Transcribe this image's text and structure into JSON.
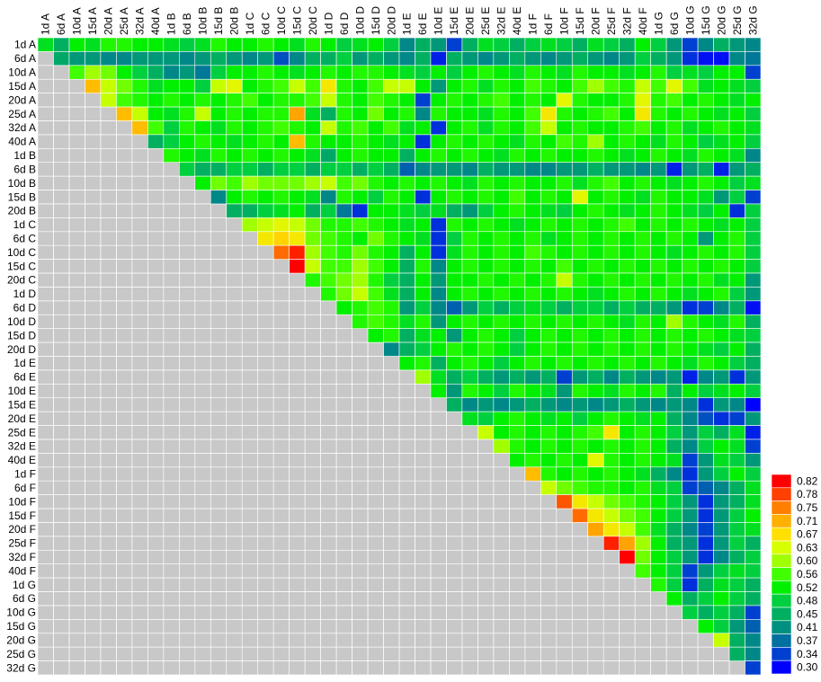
{
  "chart_data": {
    "type": "heatmap",
    "x": [
      "1d A",
      "6d A",
      "10d A",
      "15d A",
      "20d A",
      "25d A",
      "32d A",
      "40d A",
      "1d B",
      "6d B",
      "10d B",
      "15d B",
      "20d B",
      "1d C",
      "6d C",
      "10d C",
      "15d C",
      "20d C",
      "1d D",
      "6d D",
      "10d D",
      "15d D",
      "20d D",
      "1d E",
      "6d E",
      "10d E",
      "15d E",
      "20d E",
      "25d E",
      "32d E",
      "40d E",
      "1d F",
      "6d F",
      "10d F",
      "15d F",
      "20d F",
      "25d F",
      "32d F",
      "40d F",
      "1d G",
      "6d G",
      "10d G",
      "15d G",
      "20d G",
      "25d G",
      "32d G"
    ],
    "y": [
      "1d A",
      "6d A",
      "10d A",
      "15d A",
      "20d A",
      "25d A",
      "32d A",
      "40d A",
      "1d B",
      "6d B",
      "10d B",
      "15d B",
      "20d B",
      "1d C",
      "6d C",
      "10d C",
      "15d C",
      "20d C",
      "1d D",
      "6d D",
      "10d D",
      "15d D",
      "20d D",
      "1d E",
      "6d E",
      "10d E",
      "15d E",
      "20d E",
      "25d E",
      "32d E",
      "40d E",
      "1d F",
      "6d F",
      "10d F",
      "15d F",
      "20d F",
      "25d F",
      "32d F",
      "40d F",
      "1d G",
      "6d G",
      "10d G",
      "15d G",
      "20d G",
      "25d G",
      "32d G"
    ],
    "z": [
      [
        0.5,
        0.45,
        0.52,
        0.5,
        0.54,
        0.54,
        0.52,
        0.52,
        0.5,
        0.48,
        0.5,
        0.54,
        0.52,
        0.52,
        0.54,
        0.52,
        0.5,
        0.54,
        0.52,
        0.48,
        0.5,
        0.52,
        0.48,
        0.4,
        0.45,
        0.42,
        0.34,
        0.45,
        0.5,
        0.48,
        0.45,
        0.48,
        0.5,
        0.48,
        0.45,
        0.5,
        0.48,
        0.45,
        0.52,
        0.48,
        0.42,
        0.34,
        0.4,
        0.45,
        0.42,
        0.4
      ],
      [
        0.44,
        0.42,
        0.42,
        0.4,
        0.4,
        0.42,
        0.42,
        0.42,
        0.4,
        0.42,
        0.45,
        0.42,
        0.4,
        0.42,
        0.35,
        0.4,
        0.45,
        0.45,
        0.48,
        0.42,
        0.45,
        0.42,
        0.4,
        0.45,
        0.32,
        0.45,
        0.42,
        0.4,
        0.42,
        0.45,
        0.42,
        0.4,
        0.42,
        0.45,
        0.42,
        0.4,
        0.42,
        0.48,
        0.45,
        0.42,
        0.33,
        0.31,
        0.31,
        0.4,
        0.38
      ],
      [
        0.56,
        0.6,
        0.58,
        0.52,
        0.48,
        0.45,
        0.4,
        0.42,
        0.38,
        0.48,
        0.52,
        0.52,
        0.54,
        0.52,
        0.5,
        0.52,
        0.54,
        0.52,
        0.54,
        0.54,
        0.52,
        0.5,
        0.48,
        0.52,
        0.48,
        0.52,
        0.54,
        0.52,
        0.5,
        0.54,
        0.52,
        0.5,
        0.54,
        0.52,
        0.52,
        0.5,
        0.52,
        0.54,
        0.48,
        0.5,
        0.48,
        0.52,
        0.52,
        0.34
      ],
      [
        0.7,
        0.62,
        0.58,
        0.54,
        0.5,
        0.52,
        0.52,
        0.48,
        0.62,
        0.64,
        0.52,
        0.54,
        0.56,
        0.62,
        0.56,
        0.66,
        0.54,
        0.52,
        0.56,
        0.62,
        0.62,
        0.52,
        0.42,
        0.52,
        0.54,
        0.5,
        0.54,
        0.52,
        0.56,
        0.54,
        0.52,
        0.56,
        0.6,
        0.56,
        0.54,
        0.62,
        0.56,
        0.64,
        0.56,
        0.5,
        0.52,
        0.5,
        0.48
      ],
      [
        0.62,
        0.56,
        0.54,
        0.52,
        0.54,
        0.52,
        0.54,
        0.52,
        0.54,
        0.56,
        0.52,
        0.54,
        0.54,
        0.56,
        0.62,
        0.54,
        0.52,
        0.56,
        0.54,
        0.52,
        0.34,
        0.52,
        0.54,
        0.52,
        0.54,
        0.56,
        0.52,
        0.54,
        0.52,
        0.64,
        0.54,
        0.52,
        0.52,
        0.54,
        0.64,
        0.54,
        0.56,
        0.52,
        0.54,
        0.52,
        0.5,
        0.52
      ],
      [
        0.7,
        0.62,
        0.52,
        0.5,
        0.54,
        0.62,
        0.52,
        0.54,
        0.52,
        0.54,
        0.54,
        0.72,
        0.5,
        0.45,
        0.54,
        0.52,
        0.58,
        0.52,
        0.54,
        0.4,
        0.54,
        0.52,
        0.52,
        0.5,
        0.54,
        0.52,
        0.56,
        0.66,
        0.54,
        0.52,
        0.54,
        0.56,
        0.52,
        0.66,
        0.54,
        0.52,
        0.54,
        0.52,
        0.5,
        0.52,
        0.48
      ],
      [
        0.7,
        0.56,
        0.48,
        0.54,
        0.52,
        0.5,
        0.54,
        0.52,
        0.54,
        0.56,
        0.54,
        0.52,
        0.62,
        0.54,
        0.56,
        0.52,
        0.56,
        0.5,
        0.52,
        0.33,
        0.52,
        0.54,
        0.5,
        0.54,
        0.52,
        0.56,
        0.62,
        0.52,
        0.54,
        0.52,
        0.52,
        0.54,
        0.56,
        0.52,
        0.54,
        0.5,
        0.52,
        0.54,
        0.52,
        0.5
      ],
      [
        0.45,
        0.48,
        0.52,
        0.54,
        0.52,
        0.5,
        0.52,
        0.54,
        0.52,
        0.7,
        0.54,
        0.52,
        0.52,
        0.54,
        0.52,
        0.5,
        0.52,
        0.33,
        0.52,
        0.54,
        0.52,
        0.54,
        0.52,
        0.5,
        0.54,
        0.52,
        0.56,
        0.54,
        0.6,
        0.52,
        0.54,
        0.52,
        0.5,
        0.54,
        0.52,
        0.48,
        0.5,
        0.52,
        0.48
      ],
      [
        0.54,
        0.52,
        0.5,
        0.54,
        0.52,
        0.54,
        0.52,
        0.54,
        0.52,
        0.5,
        0.44,
        0.52,
        0.54,
        0.52,
        0.52,
        0.45,
        0.52,
        0.54,
        0.52,
        0.54,
        0.52,
        0.5,
        0.54,
        0.52,
        0.54,
        0.52,
        0.52,
        0.54,
        0.52,
        0.5,
        0.52,
        0.54,
        0.52,
        0.5,
        0.54,
        0.52,
        0.5,
        0.4
      ],
      [
        0.48,
        0.45,
        0.45,
        0.48,
        0.48,
        0.45,
        0.48,
        0.48,
        0.45,
        0.48,
        0.48,
        0.45,
        0.48,
        0.45,
        0.36,
        0.4,
        0.42,
        0.42,
        0.4,
        0.45,
        0.42,
        0.42,
        0.4,
        0.4,
        0.42,
        0.42,
        0.45,
        0.42,
        0.42,
        0.4,
        0.42,
        0.32,
        0.42,
        0.45,
        0.32,
        0.42,
        0.45
      ],
      [
        0.52,
        0.58,
        0.56,
        0.6,
        0.58,
        0.58,
        0.58,
        0.6,
        0.62,
        0.56,
        0.58,
        0.54,
        0.52,
        0.54,
        0.52,
        0.54,
        0.52,
        0.5,
        0.54,
        0.52,
        0.54,
        0.52,
        0.52,
        0.54,
        0.5,
        0.54,
        0.56,
        0.52,
        0.54,
        0.52,
        0.5,
        0.52,
        0.54,
        0.52,
        0.48,
        0.5
      ],
      [
        0.4,
        0.52,
        0.54,
        0.52,
        0.54,
        0.52,
        0.5,
        0.4,
        0.54,
        0.52,
        0.48,
        0.54,
        0.52,
        0.33,
        0.52,
        0.54,
        0.52,
        0.54,
        0.52,
        0.56,
        0.52,
        0.54,
        0.52,
        0.64,
        0.52,
        0.54,
        0.52,
        0.5,
        0.54,
        0.52,
        0.52,
        0.5,
        0.42,
        0.48,
        0.34
      ],
      [
        0.45,
        0.45,
        0.48,
        0.5,
        0.52,
        0.45,
        0.48,
        0.38,
        0.33,
        0.52,
        0.52,
        0.5,
        0.48,
        0.5,
        0.45,
        0.42,
        0.48,
        0.52,
        0.54,
        0.52,
        0.5,
        0.48,
        0.52,
        0.54,
        0.52,
        0.5,
        0.52,
        0.54,
        0.52,
        0.5,
        0.48,
        0.52,
        0.33,
        0.48
      ],
      [
        0.6,
        0.62,
        0.64,
        0.62,
        0.58,
        0.54,
        0.54,
        0.56,
        0.54,
        0.52,
        0.5,
        0.52,
        0.33,
        0.54,
        0.52,
        0.54,
        0.52,
        0.5,
        0.52,
        0.54,
        0.52,
        0.54,
        0.52,
        0.54,
        0.56,
        0.52,
        0.54,
        0.52,
        0.54,
        0.52,
        0.5,
        0.52,
        0.48
      ],
      [
        0.66,
        0.68,
        0.66,
        0.58,
        0.56,
        0.54,
        0.52,
        0.58,
        0.54,
        0.52,
        0.5,
        0.33,
        0.48,
        0.54,
        0.52,
        0.54,
        0.52,
        0.54,
        0.5,
        0.52,
        0.54,
        0.52,
        0.54,
        0.52,
        0.54,
        0.52,
        0.54,
        0.52,
        0.42,
        0.52,
        0.54,
        0.48
      ],
      [
        0.76,
        0.8,
        0.6,
        0.56,
        0.54,
        0.58,
        0.54,
        0.52,
        0.45,
        0.52,
        0.33,
        0.5,
        0.54,
        0.52,
        0.54,
        0.52,
        0.56,
        0.54,
        0.52,
        0.54,
        0.52,
        0.54,
        0.52,
        0.54,
        0.52,
        0.5,
        0.52,
        0.54,
        0.52,
        0.54,
        0.48
      ],
      [
        0.82,
        0.62,
        0.56,
        0.56,
        0.6,
        0.56,
        0.52,
        0.45,
        0.54,
        0.4,
        0.52,
        0.54,
        0.52,
        0.54,
        0.52,
        0.54,
        0.52,
        0.56,
        0.52,
        0.54,
        0.52,
        0.54,
        0.52,
        0.54,
        0.52,
        0.54,
        0.52,
        0.54,
        0.52,
        0.48
      ],
      [
        0.54,
        0.56,
        0.58,
        0.6,
        0.54,
        0.48,
        0.45,
        0.52,
        0.42,
        0.52,
        0.52,
        0.54,
        0.52,
        0.54,
        0.52,
        0.54,
        0.62,
        0.54,
        0.52,
        0.54,
        0.52,
        0.54,
        0.52,
        0.54,
        0.52,
        0.54,
        0.5,
        0.52,
        0.42
      ],
      [
        0.54,
        0.58,
        0.62,
        0.56,
        0.5,
        0.45,
        0.52,
        0.4,
        0.52,
        0.54,
        0.52,
        0.54,
        0.52,
        0.54,
        0.52,
        0.54,
        0.52,
        0.5,
        0.52,
        0.54,
        0.52,
        0.54,
        0.52,
        0.5,
        0.52,
        0.54,
        0.48,
        0.42
      ],
      [
        0.52,
        0.54,
        0.56,
        0.54,
        0.42,
        0.48,
        0.4,
        0.36,
        0.42,
        0.48,
        0.45,
        0.48,
        0.5,
        0.48,
        0.45,
        0.48,
        0.48,
        0.45,
        0.48,
        0.45,
        0.45,
        0.42,
        0.33,
        0.34,
        0.4,
        0.45,
        0.31
      ],
      [
        0.54,
        0.56,
        0.54,
        0.5,
        0.54,
        0.42,
        0.52,
        0.54,
        0.52,
        0.54,
        0.52,
        0.54,
        0.52,
        0.54,
        0.52,
        0.54,
        0.52,
        0.5,
        0.54,
        0.52,
        0.6,
        0.54,
        0.52,
        0.5,
        0.54,
        0.45
      ],
      [
        0.52,
        0.54,
        0.45,
        0.5,
        0.52,
        0.42,
        0.52,
        0.54,
        0.52,
        0.48,
        0.52,
        0.54,
        0.52,
        0.54,
        0.52,
        0.54,
        0.52,
        0.54,
        0.52,
        0.54,
        0.52,
        0.54,
        0.52,
        0.5,
        0.48
      ],
      [
        0.4,
        0.45,
        0.48,
        0.52,
        0.54,
        0.52,
        0.54,
        0.52,
        0.48,
        0.52,
        0.54,
        0.52,
        0.54,
        0.52,
        0.54,
        0.52,
        0.54,
        0.52,
        0.54,
        0.52,
        0.5,
        0.48,
        0.52,
        0.45
      ],
      [
        0.52,
        0.54,
        0.45,
        0.52,
        0.54,
        0.52,
        0.48,
        0.52,
        0.54,
        0.52,
        0.54,
        0.52,
        0.54,
        0.52,
        0.54,
        0.52,
        0.54,
        0.52,
        0.5,
        0.54,
        0.52,
        0.48,
        0.45
      ],
      [
        0.6,
        0.5,
        0.45,
        0.48,
        0.45,
        0.42,
        0.45,
        0.42,
        0.45,
        0.34,
        0.42,
        0.45,
        0.4,
        0.45,
        0.42,
        0.4,
        0.42,
        0.32,
        0.4,
        0.42,
        0.33,
        0.42
      ],
      [
        0.52,
        0.42,
        0.54,
        0.52,
        0.48,
        0.54,
        0.52,
        0.5,
        0.42,
        0.54,
        0.52,
        0.5,
        0.54,
        0.52,
        0.54,
        0.45,
        0.52,
        0.48,
        0.5,
        0.52,
        0.48
      ],
      [
        0.45,
        0.4,
        0.42,
        0.4,
        0.42,
        0.45,
        0.42,
        0.4,
        0.42,
        0.4,
        0.42,
        0.45,
        0.42,
        0.4,
        0.42,
        0.4,
        0.33,
        0.42,
        0.4,
        0.3
      ],
      [
        0.5,
        0.48,
        0.52,
        0.54,
        0.52,
        0.5,
        0.52,
        0.48,
        0.52,
        0.54,
        0.52,
        0.5,
        0.52,
        0.45,
        0.4,
        0.35,
        0.33,
        0.34,
        0.42
      ],
      [
        0.62,
        0.52,
        0.54,
        0.52,
        0.54,
        0.52,
        0.54,
        0.56,
        0.66,
        0.52,
        0.54,
        0.52,
        0.48,
        0.42,
        0.48,
        0.45,
        0.5,
        0.32
      ],
      [
        0.6,
        0.54,
        0.52,
        0.54,
        0.52,
        0.54,
        0.52,
        0.54,
        0.52,
        0.54,
        0.52,
        0.45,
        0.4,
        0.48,
        0.52,
        0.5,
        0.34
      ],
      [
        0.52,
        0.54,
        0.52,
        0.54,
        0.52,
        0.64,
        0.54,
        0.52,
        0.54,
        0.52,
        0.5,
        0.34,
        0.42,
        0.5,
        0.48,
        0.42
      ],
      [
        0.7,
        0.54,
        0.52,
        0.54,
        0.52,
        0.54,
        0.52,
        0.5,
        0.45,
        0.4,
        0.33,
        0.42,
        0.48,
        0.52,
        0.48
      ],
      [
        0.62,
        0.58,
        0.56,
        0.54,
        0.54,
        0.52,
        0.54,
        0.5,
        0.48,
        0.34,
        0.36,
        0.4,
        0.45,
        0.5
      ],
      [
        0.77,
        0.66,
        0.62,
        0.58,
        0.56,
        0.54,
        0.52,
        0.48,
        0.42,
        0.33,
        0.42,
        0.45,
        0.5
      ],
      [
        0.76,
        0.66,
        0.62,
        0.58,
        0.56,
        0.52,
        0.48,
        0.42,
        0.33,
        0.42,
        0.48,
        0.52
      ],
      [
        0.72,
        0.66,
        0.62,
        0.56,
        0.5,
        0.45,
        0.4,
        0.34,
        0.42,
        0.48,
        0.5
      ],
      [
        0.8,
        0.72,
        0.6,
        0.52,
        0.45,
        0.42,
        0.33,
        0.42,
        0.48,
        0.45
      ],
      [
        0.82,
        0.58,
        0.52,
        0.48,
        0.42,
        0.33,
        0.4,
        0.45,
        0.48
      ],
      [
        0.56,
        0.52,
        0.48,
        0.34,
        0.42,
        0.48,
        0.5,
        0.48
      ],
      [
        0.54,
        0.48,
        0.33,
        0.45,
        0.5,
        0.48,
        0.45
      ],
      [
        0.52,
        0.45,
        0.48,
        0.52,
        0.48,
        0.45
      ],
      [
        0.48,
        0.45,
        0.48,
        0.45,
        0.34
      ],
      [
        0.52,
        0.48,
        0.42,
        0.36
      ],
      [
        0.62,
        0.45,
        0.4
      ],
      [
        0.45,
        0.4
      ],
      [
        0.34
      ]
    ],
    "missing_color": "#c8c8c8",
    "colorbar": {
      "ticks": [
        0.82,
        0.78,
        0.75,
        0.71,
        0.67,
        0.63,
        {
          "value": 0.6,
          "label": "0.60"
        },
        0.56,
        0.52,
        0.48,
        0.45,
        0.41,
        0.37,
        0.34,
        {
          "value": 0.3,
          "label": "0.30"
        }
      ],
      "colors": [
        "#ff0000",
        "#ff4000",
        "#ff8000",
        "#ffb000",
        "#ffe000",
        "#d8ff00",
        "#a0ff00",
        "#40ff00",
        "#00f000",
        "#00d040",
        "#00b060",
        "#009080",
        "#0070a0",
        "#0040d0",
        "#0000ff"
      ]
    }
  }
}
